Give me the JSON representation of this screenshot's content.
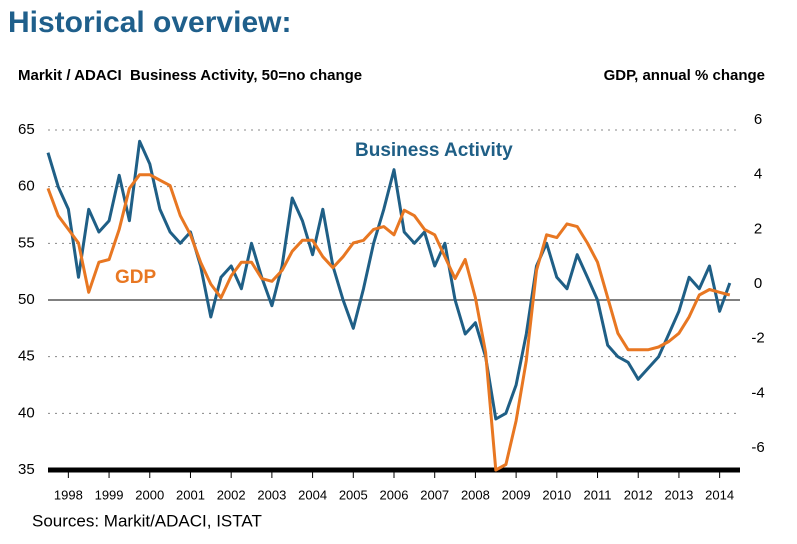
{
  "chart_data": {
    "type": "line",
    "title": "Historical overview:",
    "y_label": "Markit / ADACI  Business Activity, 50=no change",
    "y2_label": "GDP, annual % change",
    "source": "Sources: Markit/ADACI, ISTAT",
    "x": [
      1998.0,
      1998.25,
      1998.5,
      1998.75,
      1999.0,
      1999.25,
      1999.5,
      1999.75,
      2000.0,
      2000.25,
      2000.5,
      2000.75,
      2001.0,
      2001.25,
      2001.5,
      2001.75,
      2002.0,
      2002.25,
      2002.5,
      2002.75,
      2003.0,
      2003.25,
      2003.5,
      2003.75,
      2004.0,
      2004.25,
      2004.5,
      2004.75,
      2005.0,
      2005.25,
      2005.5,
      2005.75,
      2006.0,
      2006.25,
      2006.5,
      2006.75,
      2007.0,
      2007.25,
      2007.5,
      2007.75,
      2008.0,
      2008.25,
      2008.5,
      2008.75,
      2009.0,
      2009.25,
      2009.5,
      2009.75,
      2010.0,
      2010.25,
      2010.5,
      2010.75,
      2011.0,
      2011.25,
      2011.5,
      2011.75,
      2012.0,
      2012.25,
      2012.5,
      2012.75,
      2013.0,
      2013.25,
      2013.5,
      2013.75,
      2014.0,
      2014.25,
      2014.5,
      2014.75
    ],
    "series": [
      {
        "name": "Business Activity",
        "color": "#1f5f86",
        "values": [
          63,
          60,
          58,
          52,
          58,
          56,
          57,
          61,
          57,
          64,
          62,
          58,
          56,
          55,
          56,
          53,
          48.5,
          52,
          53,
          51,
          55,
          52,
          49.5,
          53,
          59,
          57,
          54,
          58,
          53,
          50,
          47.5,
          51,
          55,
          58,
          61.5,
          56,
          55,
          56,
          53,
          55,
          50,
          47,
          48,
          45,
          39.5,
          40,
          42.5,
          47,
          53,
          55,
          52,
          51,
          54,
          52,
          50,
          46,
          45,
          44.5,
          43,
          44,
          45,
          47,
          49,
          52,
          51,
          53,
          49,
          51.5
        ]
      },
      {
        "name": "GDP",
        "color": "#e87722",
        "axis": "y2",
        "values": [
          3.5,
          2.5,
          2.0,
          1.5,
          -0.3,
          0.8,
          0.9,
          2.0,
          3.5,
          4.0,
          4.0,
          3.8,
          3.6,
          2.5,
          1.8,
          0.8,
          0.0,
          -0.5,
          0.3,
          0.8,
          0.8,
          0.2,
          0.1,
          0.5,
          1.2,
          1.6,
          1.6,
          1.0,
          0.6,
          1.0,
          1.5,
          1.6,
          2.0,
          2.1,
          1.8,
          2.7,
          2.5,
          2.0,
          1.8,
          1.0,
          0.2,
          0.9,
          -0.5,
          -2.5,
          -6.8,
          -6.6,
          -5.0,
          -2.8,
          0.5,
          1.8,
          1.7,
          2.2,
          2.1,
          1.5,
          0.8,
          -0.5,
          -1.8,
          -2.4,
          -2.4,
          -2.4,
          -2.3,
          -2.1,
          -1.8,
          -1.2,
          -0.4,
          -0.2,
          -0.3,
          -0.4
        ]
      }
    ],
    "xlim": [
      1998,
      2015
    ],
    "xticks": [
      {
        "value": 1998.5,
        "label": "1998"
      },
      {
        "value": 1999.5,
        "label": "1999"
      },
      {
        "value": 2000.5,
        "label": "2000"
      },
      {
        "value": 2001.5,
        "label": "2001"
      },
      {
        "value": 2002.5,
        "label": "2002"
      },
      {
        "value": 2003.5,
        "label": "2003"
      },
      {
        "value": 2004.5,
        "label": "2004"
      },
      {
        "value": 2005.5,
        "label": "2005"
      },
      {
        "value": 2006.5,
        "label": "2006"
      },
      {
        "value": 2007.5,
        "label": "2007"
      },
      {
        "value": 2008.5,
        "label": "2008"
      },
      {
        "value": 2009.5,
        "label": "2009"
      },
      {
        "value": 2010.5,
        "label": "2010"
      },
      {
        "value": 2011.5,
        "label": "2011"
      },
      {
        "value": 2012.5,
        "label": "2012"
      },
      {
        "value": 2013.5,
        "label": "2013"
      },
      {
        "value": 2014.5,
        "label": "2014"
      }
    ],
    "ylim": [
      35,
      65
    ],
    "yticks": [
      35,
      40,
      45,
      50,
      55,
      60,
      65
    ],
    "reference_line": 50,
    "y2lim": [
      -6.8,
      6
    ],
    "y2ticks": [
      -6,
      -4,
      -2,
      0,
      2,
      4,
      6
    ],
    "grid": true
  }
}
